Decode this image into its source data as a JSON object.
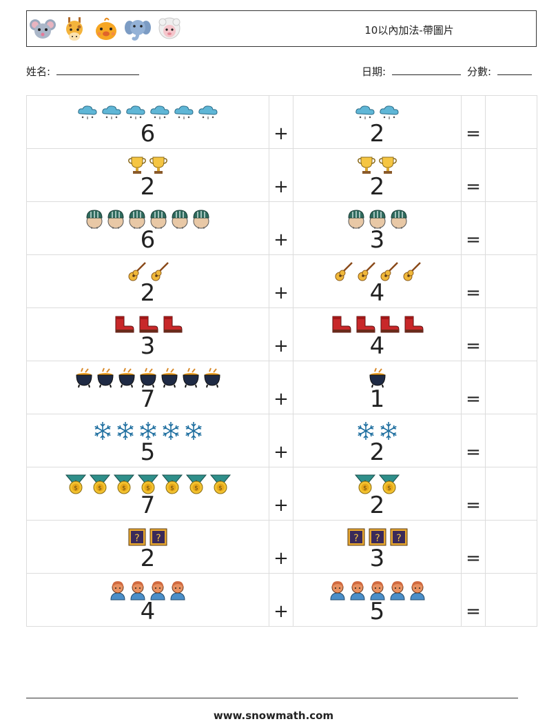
{
  "header": {
    "title": "10以內加法-帶圖片",
    "animal_icons": [
      "mouse-icon",
      "giraffe-icon",
      "chick-icon",
      "elephant-icon",
      "sheep-icon"
    ]
  },
  "info": {
    "name_label": "姓名:",
    "date_label": "日期:",
    "score_label": "分數:"
  },
  "worksheet": {
    "plus_sign": "+",
    "equals_sign": "=",
    "rows": [
      {
        "left": {
          "icon": "cloud-icon",
          "count": 6,
          "number": "6"
        },
        "right": {
          "icon": "cloud-icon",
          "count": 2,
          "number": "2"
        }
      },
      {
        "left": {
          "icon": "trophy-icon",
          "count": 2,
          "number": "2"
        },
        "right": {
          "icon": "trophy-icon",
          "count": 2,
          "number": "2"
        }
      },
      {
        "left": {
          "icon": "helmet-head-icon",
          "count": 6,
          "number": "6"
        },
        "right": {
          "icon": "helmet-head-icon",
          "count": 3,
          "number": "3"
        }
      },
      {
        "left": {
          "icon": "guitar-icon",
          "count": 2,
          "number": "2"
        },
        "right": {
          "icon": "guitar-icon",
          "count": 4,
          "number": "4"
        }
      },
      {
        "left": {
          "icon": "boot-icon",
          "count": 3,
          "number": "3"
        },
        "right": {
          "icon": "boot-icon",
          "count": 4,
          "number": "4"
        }
      },
      {
        "left": {
          "icon": "cauldron-icon",
          "count": 7,
          "number": "7"
        },
        "right": {
          "icon": "cauldron-icon",
          "count": 1,
          "number": "1"
        }
      },
      {
        "left": {
          "icon": "snowflake-icon",
          "count": 5,
          "number": "5"
        },
        "right": {
          "icon": "snowflake-icon",
          "count": 2,
          "number": "2"
        }
      },
      {
        "left": {
          "icon": "medal-icon",
          "count": 7,
          "number": "7"
        },
        "right": {
          "icon": "medal-icon",
          "count": 2,
          "number": "2"
        }
      },
      {
        "left": {
          "icon": "question-box-icon",
          "count": 2,
          "number": "2"
        },
        "right": {
          "icon": "question-box-icon",
          "count": 3,
          "number": "3"
        }
      },
      {
        "left": {
          "icon": "person-icon",
          "count": 4,
          "number": "4"
        },
        "right": {
          "icon": "person-icon",
          "count": 5,
          "number": "5"
        }
      }
    ]
  },
  "footer": {
    "url": "www.snowmath.com"
  }
}
